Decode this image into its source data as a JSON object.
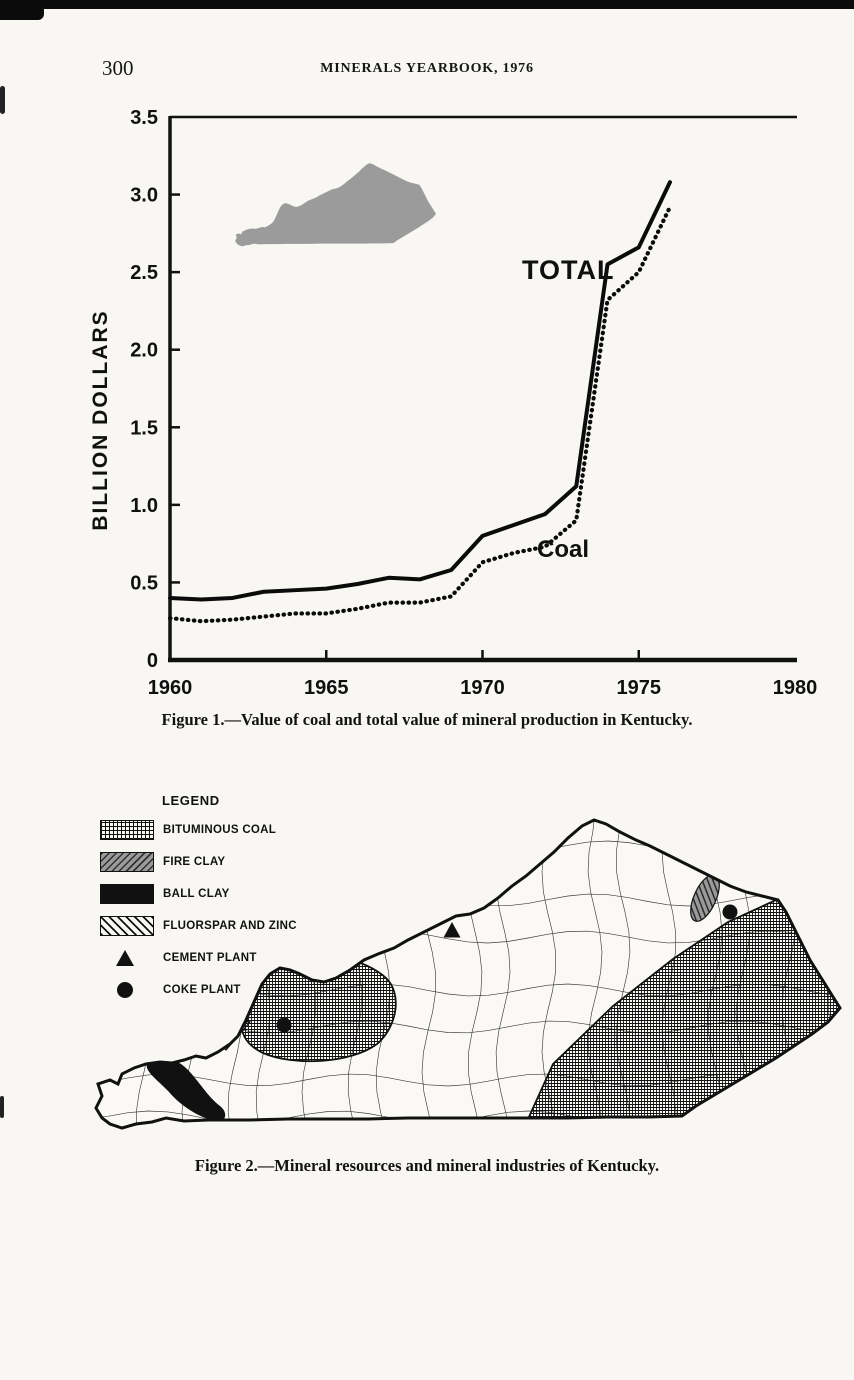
{
  "page": {
    "number": "300",
    "header": "MINERALS YEARBOOK, 1976"
  },
  "figure1": {
    "caption": "Figure 1.—Value of coal and total value of mineral production in Kentucky."
  },
  "chart_data": {
    "type": "line",
    "title": "",
    "xlabel": "",
    "ylabel": "BILLION DOLLARS",
    "xlim": [
      1960,
      1980
    ],
    "ylim": [
      0,
      3.5
    ],
    "x_ticks": [
      1960,
      1965,
      1970,
      1975,
      1980
    ],
    "y_ticks": [
      0,
      0.5,
      1.0,
      1.5,
      2.0,
      2.5,
      3.0,
      3.5
    ],
    "grid": false,
    "x": [
      1960,
      1961,
      1962,
      1963,
      1964,
      1965,
      1966,
      1967,
      1968,
      1969,
      1970,
      1971,
      1972,
      1973,
      1974,
      1975,
      1976
    ],
    "series": [
      {
        "name": "TOTAL",
        "style": "solid",
        "values": [
          0.4,
          0.39,
          0.4,
          0.44,
          0.45,
          0.46,
          0.49,
          0.53,
          0.52,
          0.58,
          0.8,
          0.87,
          0.94,
          1.12,
          2.55,
          2.66,
          3.08
        ]
      },
      {
        "name": "Coal",
        "style": "dotted",
        "values": [
          0.27,
          0.25,
          0.26,
          0.28,
          0.3,
          0.3,
          0.33,
          0.37,
          0.37,
          0.41,
          0.63,
          0.69,
          0.73,
          0.9,
          2.32,
          2.5,
          2.92
        ]
      }
    ],
    "annotations": [
      "Kentucky state silhouette (gray) inside plot, upper left"
    ]
  },
  "figure2": {
    "caption": "Figure 2.—Mineral resources and mineral industries of Kentucky.",
    "legend_title": "LEGEND",
    "legend_items": [
      {
        "label": "BITUMINOUS COAL",
        "swatch": "crosshatch"
      },
      {
        "label": "FIRE CLAY",
        "swatch": "gray-hatch"
      },
      {
        "label": "BALL CLAY",
        "swatch": "solid-black"
      },
      {
        "label": "FLUORSPAR AND ZINC",
        "swatch": "diagonal-lines"
      },
      {
        "label": "CEMENT PLANT",
        "swatch": "triangle"
      },
      {
        "label": "COKE PLANT",
        "swatch": "circle"
      }
    ]
  }
}
